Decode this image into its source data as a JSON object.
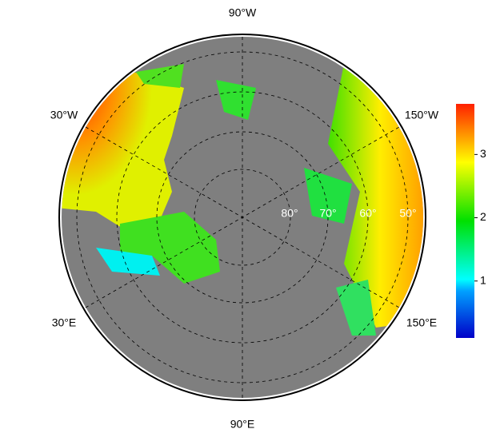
{
  "map": {
    "longitude_labels": [
      "90°W",
      "30°W",
      "150°W",
      "30°E",
      "150°E",
      "90°E"
    ],
    "latitude_labels": [
      "80°",
      "70°",
      "60°",
      "50°"
    ],
    "colorbar": {
      "lim": [
        0.1,
        3.8
      ],
      "ticks": [
        1,
        2,
        3
      ]
    }
  }
}
